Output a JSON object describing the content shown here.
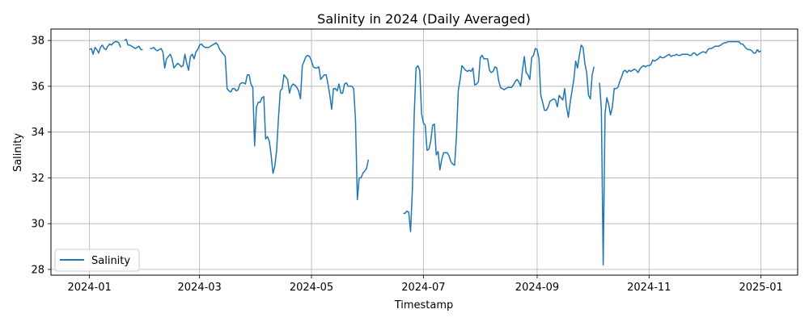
{
  "chart_data": {
    "type": "line",
    "title": "Salinity in 2024 (Daily Averaged)",
    "xlabel": "Timestamp",
    "ylabel": "Salinity",
    "xlim": [
      "2023-12-11",
      "2025-01-21"
    ],
    "ylim": [
      27.75,
      38.5
    ],
    "x_ticks": [
      "2024-01-01",
      "2024-03-01",
      "2024-05-01",
      "2024-07-01",
      "2024-09-01",
      "2024-11-01",
      "2025-01-01"
    ],
    "x_tick_labels": [
      "2024-01",
      "2024-03",
      "2024-05",
      "2024-07",
      "2024-09",
      "2024-11",
      "2025-01"
    ],
    "y_ticks": [
      28,
      30,
      32,
      34,
      36,
      38
    ],
    "y_tick_labels": [
      "28",
      "30",
      "32",
      "34",
      "36",
      "38"
    ],
    "grid": true,
    "legend_position": "lower-left",
    "series": [
      {
        "name": "Salinity",
        "color": "#1f77b4",
        "segments": [
          {
            "start": "2024-01-01",
            "values": [
              37.6,
              37.65,
              37.4,
              37.7,
              37.6,
              37.45,
              37.7,
              37.8,
              37.65,
              37.6,
              37.75,
              37.85,
              37.8,
              37.9,
              37.95,
              37.95,
              37.9,
              37.7
            ]
          },
          {
            "start": "2024-01-20",
            "values": [
              38.0,
              38.05,
              37.8,
              37.8,
              37.75,
              37.7,
              37.65,
              37.7,
              37.75,
              37.6,
              37.6
            ]
          },
          {
            "start": "2024-02-03",
            "values": [
              37.65,
              37.65,
              37.7,
              37.6,
              37.55,
              37.6,
              37.65,
              37.5,
              36.8,
              37.2,
              37.3,
              37.4,
              37.2,
              36.8,
              36.9,
              37.0,
              36.95,
              36.85,
              36.9,
              37.4,
              37.0,
              36.7,
              37.3,
              37.4,
              37.2,
              37.5,
              37.6,
              37.8,
              37.85,
              37.75,
              37.7,
              37.7,
              37.7,
              37.75,
              37.8,
              37.85,
              37.9,
              37.8,
              37.6,
              37.5,
              37.4,
              37.3,
              35.9,
              35.8,
              35.75,
              35.9,
              35.9,
              35.8,
              35.85,
              36.1,
              36.15,
              36.15,
              36.1,
              36.5,
              36.5,
              36.1,
              35.95,
              33.4,
              35.1,
              35.3,
              35.3,
              35.5,
              35.55,
              33.7,
              33.8,
              33.6,
              33.0,
              32.2,
              32.5,
              33.2,
              34.6,
              35.8,
              35.9,
              36.5,
              36.4,
              36.3,
              35.7,
              36.0,
              36.1,
              36.05,
              35.95,
              35.8,
              35.45,
              36.9,
              37.1,
              37.3,
              37.35,
              37.3,
              37.1,
              36.85,
              36.8,
              36.8,
              36.85,
              36.3,
              36.4,
              36.5,
              36.5,
              36.1,
              35.6,
              35.0,
              35.9,
              35.9,
              35.8,
              36.1,
              35.7,
              35.7,
              36.1,
              36.15,
              36.0,
              36.0,
              36.0,
              35.9,
              34.5,
              31.05,
              32.0,
              32.0,
              32.2,
              32.3,
              32.4,
              32.8
            ]
          },
          {
            "start": "2024-06-20",
            "values": [
              30.45,
              30.45,
              30.55,
              30.5,
              29.65,
              31.5,
              34.8,
              36.8,
              36.9,
              36.7,
              34.8,
              34.4,
              34.3,
              33.2,
              33.25,
              33.6,
              34.3,
              34.35,
              33.0,
              33.15,
              32.35,
              32.8,
              33.1,
              33.1,
              33.1,
              32.95,
              32.7,
              32.6,
              32.55,
              33.8,
              35.8,
              36.3,
              36.9,
              36.8,
              36.7,
              36.65,
              36.7,
              36.65,
              36.8,
              36.05,
              36.1,
              36.2,
              37.25,
              37.35,
              37.2,
              37.2,
              37.2,
              36.7,
              36.6,
              36.65,
              36.85,
              36.8,
              36.25,
              35.95,
              35.9,
              35.85,
              35.9,
              35.95,
              35.95,
              35.95,
              36.05,
              36.2,
              36.3,
              36.2,
              36.0,
              36.7,
              37.3,
              36.6,
              36.5,
              36.3,
              37.25,
              37.35,
              37.65,
              37.6,
              37.2,
              35.6,
              35.3,
              34.95,
              34.95,
              35.1,
              35.35,
              35.4,
              35.45,
              35.4,
              35.1,
              35.6,
              35.5,
              35.4,
              35.9,
              35.1,
              34.65,
              35.3,
              35.8,
              36.3,
              37.1,
              36.8,
              37.35,
              37.8,
              37.7,
              37.0,
              36.6,
              35.6,
              35.45,
              36.5,
              36.85
            ]
          },
          {
            "start": "2024-10-05",
            "values": [
              36.15,
              35.0,
              28.2,
              34.8,
              35.5,
              35.2,
              34.75,
              35.1,
              35.9,
              35.9,
              35.95,
              36.2,
              36.4,
              36.65,
              36.7,
              36.6,
              36.7,
              36.65,
              36.7,
              36.75,
              36.7,
              36.6,
              36.75,
              36.85,
              36.9,
              36.85,
              36.9,
              36.9,
              36.95,
              37.15,
              37.1,
              37.15,
              37.2,
              37.3,
              37.25,
              37.25,
              37.3,
              37.35,
              37.4,
              37.3,
              37.35,
              37.35,
              37.4,
              37.35,
              37.35,
              37.4,
              37.4,
              37.4,
              37.4,
              37.35,
              37.35,
              37.45,
              37.45,
              37.35,
              37.4,
              37.45,
              37.5,
              37.5,
              37.45,
              37.6,
              37.65,
              37.65,
              37.7,
              37.75,
              37.75,
              37.75,
              37.8,
              37.85,
              37.9,
              37.9,
              37.95,
              37.95,
              37.95,
              37.95,
              37.95,
              37.95,
              37.95,
              37.85,
              37.85,
              37.75,
              37.65,
              37.6,
              37.6,
              37.55,
              37.45,
              37.45,
              37.6,
              37.5,
              37.55
            ]
          }
        ]
      }
    ]
  }
}
